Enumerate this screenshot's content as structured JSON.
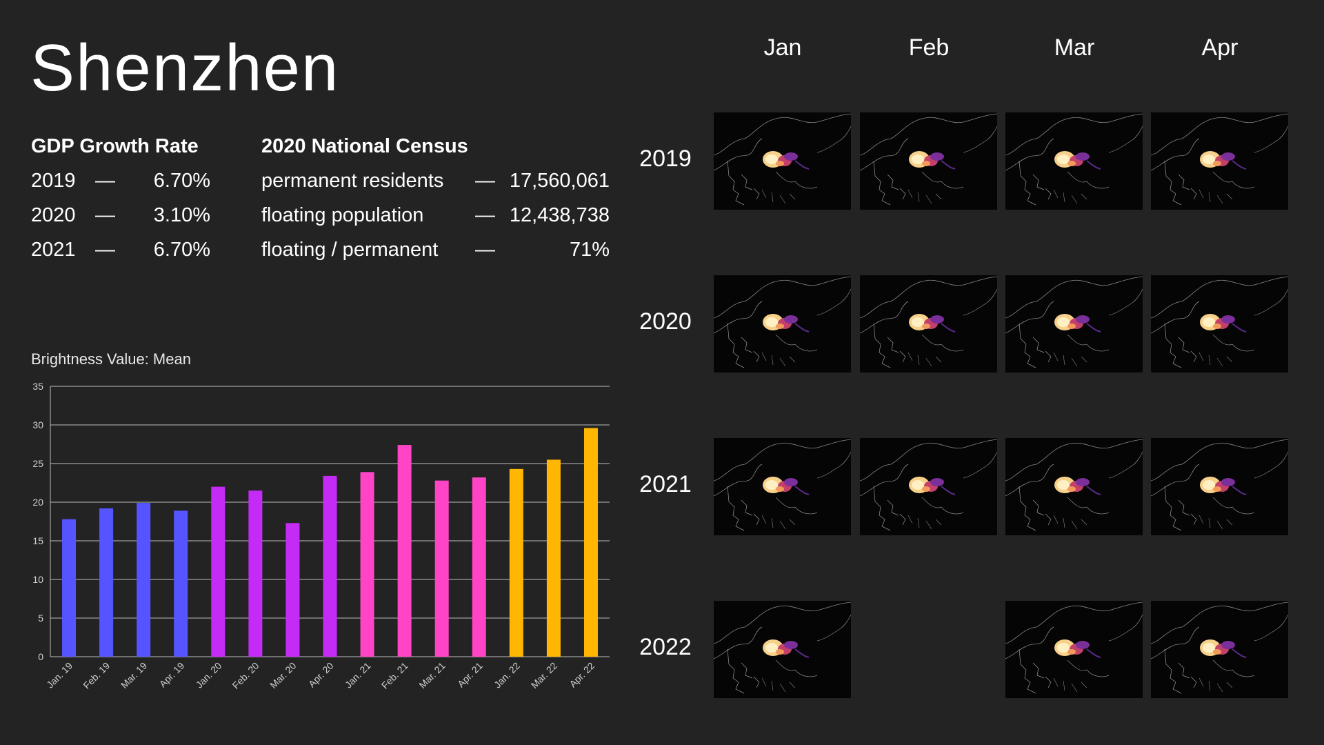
{
  "title": "Shenzhen",
  "gdp": {
    "heading": "GDP Growth Rate",
    "rows": [
      {
        "year": "2019",
        "dash": "—",
        "value": "6.70%"
      },
      {
        "year": "2020",
        "dash": "—",
        "value": "3.10%"
      },
      {
        "year": "2021",
        "dash": "—",
        "value": "6.70%"
      }
    ]
  },
  "census": {
    "heading": "2020 National Census",
    "rows": [
      {
        "label": "permanent residents",
        "dash": "—",
        "value": "17,560,061"
      },
      {
        "label": "floating population",
        "dash": "—",
        "value": "12,438,738"
      },
      {
        "label": "floating / permanent",
        "dash": "—",
        "value": "71%"
      }
    ]
  },
  "chart_data": {
    "type": "bar",
    "title": "Brightness Value: Mean",
    "categories": [
      "Jan. 19",
      "Feb. 19",
      "Mar. 19",
      "Apr. 19",
      "Jan. 20",
      "Feb. 20",
      "Mar. 20",
      "Apr. 20",
      "Jan. 21",
      "Feb. 21",
      "Mar. 21",
      "Apr. 21",
      "Jan. 22",
      "Mar. 22",
      "Apr. 22"
    ],
    "values": [
      17.8,
      19.2,
      19.9,
      18.9,
      22.0,
      21.5,
      17.3,
      23.4,
      23.9,
      27.4,
      22.8,
      23.2,
      24.3,
      25.5,
      29.6
    ],
    "bar_colors": [
      "#5555ff",
      "#5555ff",
      "#5555ff",
      "#5555ff",
      "#c42cf5",
      "#c42cf5",
      "#c42cf5",
      "#c42cf5",
      "#ff45c5",
      "#ff45c5",
      "#ff45c5",
      "#ff45c5",
      "#ffb703",
      "#ffb703",
      "#ffb703"
    ],
    "ylim": [
      0,
      35
    ],
    "yticks": [
      0,
      5,
      10,
      15,
      20,
      25,
      30,
      35
    ],
    "grid": true
  },
  "grid": {
    "months": [
      "Jan",
      "Feb",
      "Mar",
      "Apr"
    ],
    "years": [
      "2019",
      "2020",
      "2021",
      "2022"
    ],
    "missing": [
      [
        3,
        1
      ]
    ]
  }
}
